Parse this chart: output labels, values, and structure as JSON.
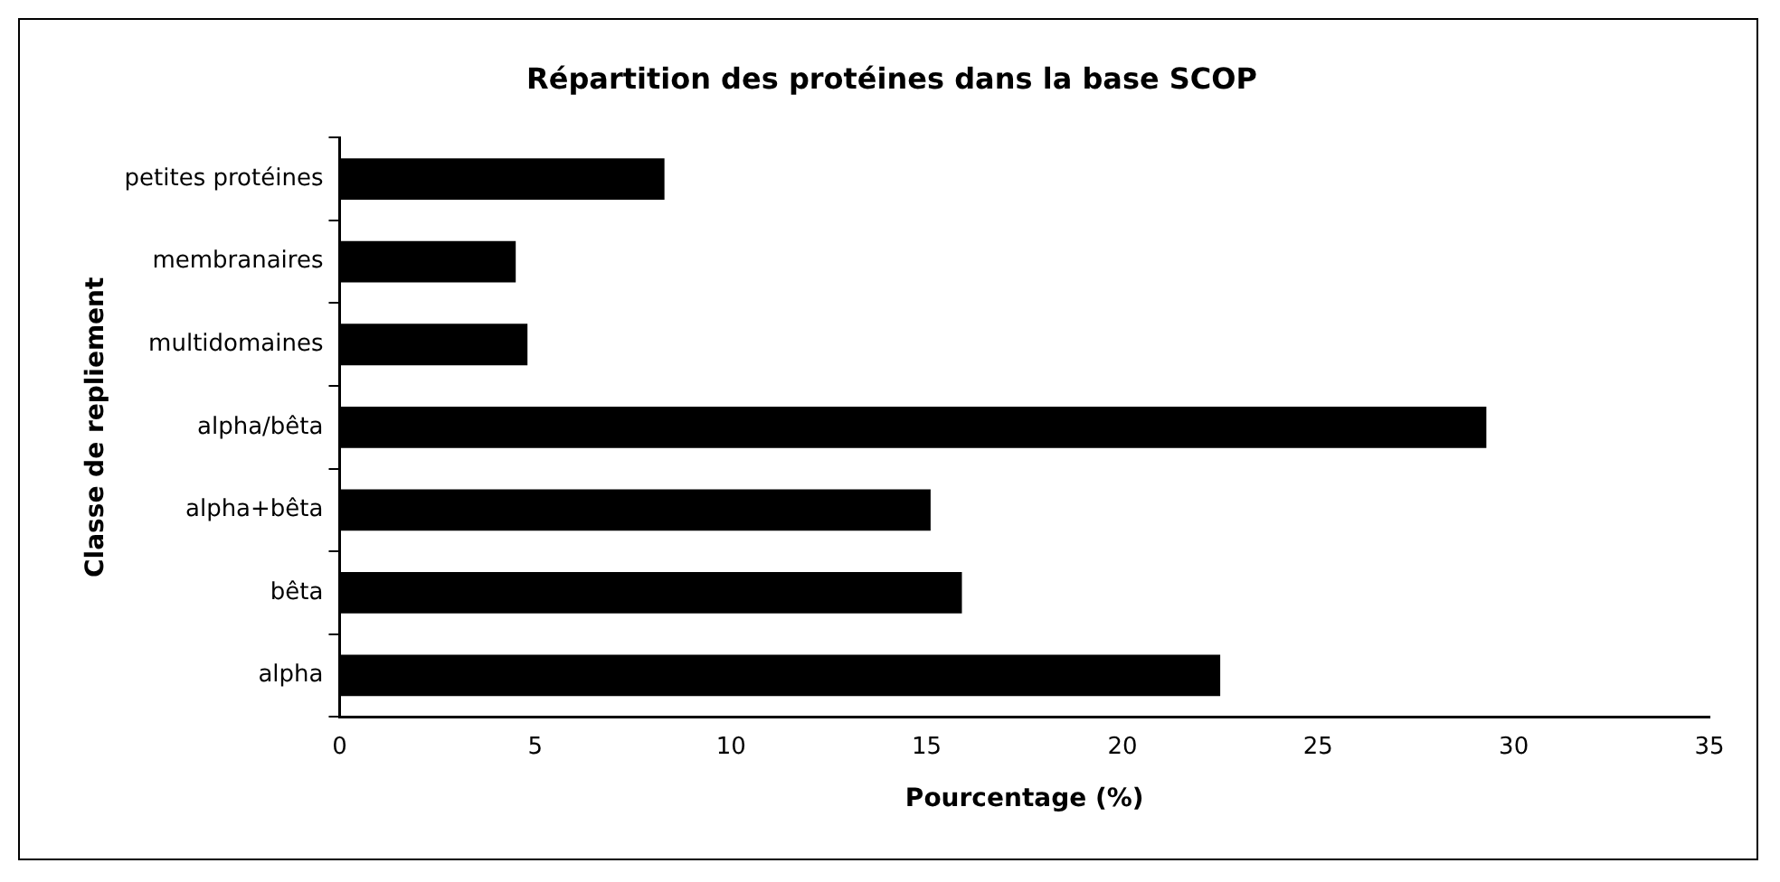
{
  "chart_data": {
    "type": "bar",
    "orientation": "horizontal",
    "title": "Répartition des protéines dans la base SCOP",
    "xlabel": "Pourcentage (%)",
    "ylabel": "Classe de repliement",
    "categories": [
      "petites protéines",
      "membranaires",
      "multidomaines",
      "alpha/bêta",
      "alpha+bêta",
      "bêta",
      "alpha"
    ],
    "values": [
      8.3,
      4.5,
      4.8,
      29.3,
      15.1,
      15.9,
      22.5
    ],
    "color": "#000000",
    "xlim": [
      0,
      35
    ],
    "xticks": [
      0,
      5,
      10,
      15,
      20,
      25,
      30,
      35
    ],
    "grid": false,
    "legend": false
  }
}
